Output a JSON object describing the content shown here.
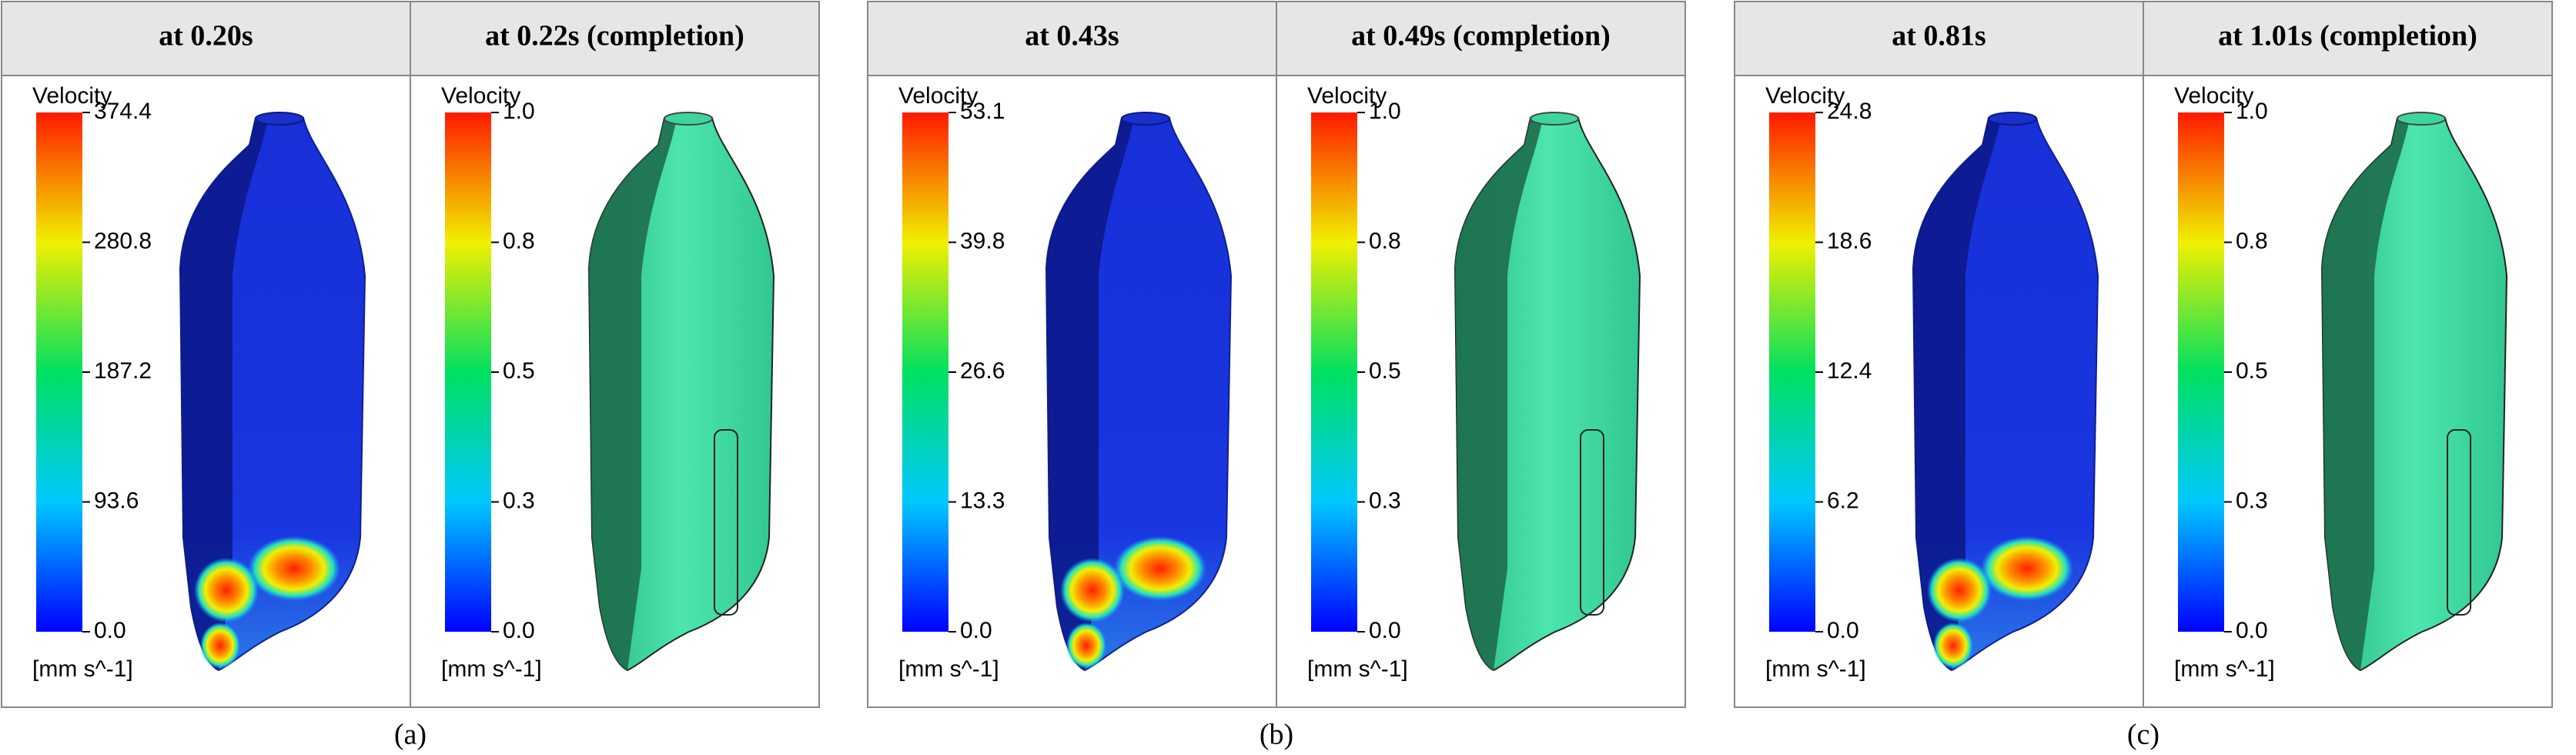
{
  "panels": [
    {
      "caption": "(a)",
      "views": [
        {
          "title": "at 0.20s",
          "legend_title": "Velocity",
          "unit": "[mm s^-1]",
          "ticks": [
            "374.4",
            "280.8",
            "187.2",
            "93.6",
            "0.0"
          ]
        },
        {
          "title": "at 0.22s (completion)",
          "legend_title": "Velocity",
          "unit": "[mm s^-1]",
          "ticks": [
            "1.0",
            "0.8",
            "0.5",
            "0.3",
            "0.0"
          ]
        }
      ]
    },
    {
      "caption": "(b)",
      "views": [
        {
          "title": "at 0.43s",
          "legend_title": "Velocity",
          "unit": "[mm s^-1]",
          "ticks": [
            "53.1",
            "39.8",
            "26.6",
            "13.3",
            "0.0"
          ]
        },
        {
          "title": "at 0.49s (completion)",
          "legend_title": "Velocity",
          "unit": "[mm s^-1]",
          "ticks": [
            "1.0",
            "0.8",
            "0.5",
            "0.3",
            "0.0"
          ]
        }
      ]
    },
    {
      "caption": "(c)",
      "views": [
        {
          "title": "at 0.81s",
          "legend_title": "Velocity",
          "unit": "[mm s^-1]",
          "ticks": [
            "24.8",
            "18.6",
            "12.4",
            "6.2",
            "0.0"
          ]
        },
        {
          "title": "at 1.01s (completion)",
          "legend_title": "Velocity",
          "unit": "[mm s^-1]",
          "ticks": [
            "1.0",
            "0.8",
            "0.5",
            "0.3",
            "0.0"
          ]
        }
      ]
    }
  ]
}
